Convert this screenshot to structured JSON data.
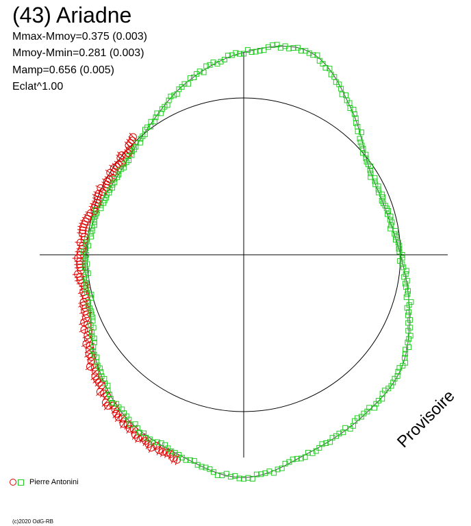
{
  "chart_data": {
    "type": "scatter",
    "title": "(43) Ariadne",
    "stats": [
      "Mmax-Mmoy=0.375 (0.003)",
      "Mmoy-Mmin=0.281 (0.003)",
      "Mamp=0.656 (0.005)",
      "Eclat^1.00"
    ],
    "stamp": "Provisoire",
    "copyright": "(c)2020 OdG-RB",
    "mean_brightness": 1.0,
    "period_fraction_range": [
      0,
      1
    ],
    "curve": {
      "phase": [
        0.0,
        0.05,
        0.1,
        0.15,
        0.2,
        0.25,
        0.3,
        0.35,
        0.4,
        0.45,
        0.5,
        0.55,
        0.6,
        0.65,
        0.7,
        0.75,
        0.8,
        0.85,
        0.9,
        0.95
      ],
      "brightness": [
        1.29,
        1.36,
        1.16,
        0.98,
        0.95,
        1.0,
        1.11,
        1.24,
        1.28,
        1.33,
        1.42,
        1.34,
        1.28,
        1.16,
        1.03,
        1.01,
        0.97,
        0.95,
        1.02,
        1.16
      ]
    },
    "series": [
      {
        "name": "Pierre Antonini",
        "marker": "circle",
        "color": "#e00000",
        "phase_range": [
          0.55,
          0.88
        ]
      },
      {
        "name": "Pierre Antonini",
        "marker": "square",
        "color": "#22cc22",
        "phase_range": [
          0.0,
          1.0
        ]
      }
    ],
    "legend": {
      "position": "bottom-left",
      "label": "Pierre Antonini"
    }
  }
}
